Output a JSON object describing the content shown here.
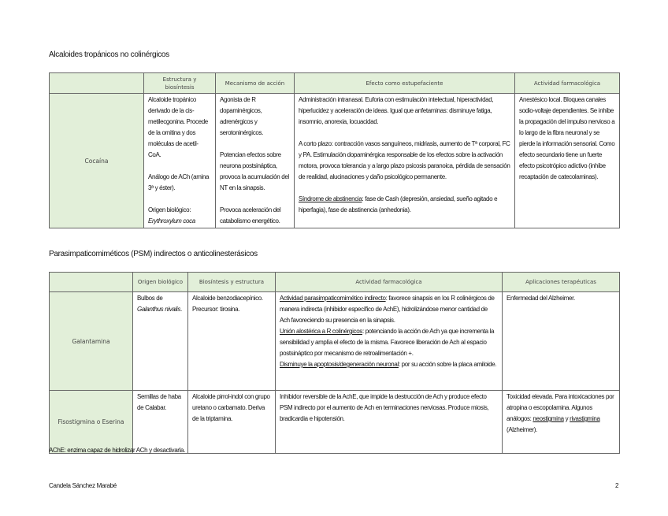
{
  "section1": {
    "title": "Alcaloides tropánicos no colinérgicos",
    "headers": [
      "",
      "Estructura y biosíntesis",
      "Mecanismo de acción",
      "Efecto como estupefaciente",
      "Actividad farmacológica"
    ],
    "row": {
      "name": "Cocaína",
      "estructura": [
        "Alcaloide tropánico derivado de la cis-metilecgonina. Procede de la ornitina y dos moléculas de acetil-CoA.",
        "Análogo de ACh (amina 3ª y éster).",
        "Origen biológico:"
      ],
      "estructura_italic": "Erythroxylum coca",
      "mecanismo": [
        "Agonista de R dopaminérgicos, adrenérgicos y serotoninérgicos.",
        "Potencian efectos sobre neurona postsináptica, provoca la acumulación del NT en la sinapsis.",
        "Provoca aceleración del catabolismo energético."
      ],
      "efecto": [
        "Administración intranasal. Euforia con estimulación intelectual, hiperactividad, hiperlucidez y aceleración de ideas. Igual que anfetaminas: disminuye fatiga, insomnio, anorexia, locuacidad.",
        "A corto plazo: contracción vasos sanguíneos, midriasis, aumento de Tª corporal, FC y PA. Estimulación dopaminérgica responsable de los efectos sobre la activación motora, provoca tolerancia y a largo plazo psicosis paranoica, pérdida de sensación de realidad, alucinaciones y daño psicológico permanente."
      ],
      "efecto_abst_label": "Síndrome de abstinencia",
      "efecto_abst_text": ": fase de Cash (depresión, ansiedad, sueño agitado e hiperfagia), fase de abstinencia (anhedonia).",
      "actividad": "Anestésico local. Bloquea canales sodio-voltaje dependientes. Se inhibe la propagación del impulso nervioso a lo largo de la fibra neuronal y se pierde la información sensorial. Como efecto secundario tiene un fuerte efecto psicotrópico adictivo (inhibe recaptación de catecolaminas)."
    }
  },
  "section2": {
    "title": "Parasimpaticomiméticos (PSM) indirectos o anticolinesterásicos",
    "headers": [
      "",
      "Origen biológico",
      "Biosíntesis y estructura",
      "Actividad farmacológica",
      "Aplicaciones terapéuticas"
    ],
    "rows": [
      {
        "name": "Galantamina",
        "origen": "Bulbos de",
        "origen_italic": "Galanthus nivalis",
        "origen_end": ".",
        "biosintesis": "Alcaloide benzodiacepínico. Precursor: tirosina.",
        "act": [
          {
            "label": "Actividad parasimpaticomimético indirecto",
            "text": ": favorece sinapsis en los R colinérgicos de manera indirecta (inhibidor específico de AchE), hidrolizándose menor cantidad de Ach favoreciendo su presencia en la sinapsis."
          },
          {
            "label": "Unión alostérica a R colinérgicos",
            "text": ": potenciando la acción de Ach ya que incrementa la sensibilidad y amplía el efecto de la misma. Favorece liberación de Ach al espacio postsináptico por mecanismo de retroalimentación +."
          },
          {
            "label": "Disminuye la apoptosis/degeneración neuronal",
            "text": ": por su acción sobre la placa amiloide."
          }
        ],
        "aplicaciones": "Enfermedad del Alzheimer."
      },
      {
        "name": "Fisostigmina o Eserina",
        "origen": "Semillas de haba de Calabar.",
        "biosintesis": "Alcaloide pirrol-indol con grupo uretano o carbamato. Deriva de la triptamina.",
        "act_text": "Inhibidor reversible de la AchE, que impide la destrucción de Ach y produce efecto PSM indirecto por el aumento de Ach en terminaciones nerviosas. Produce miosis, bradicardia e hipotensión.",
        "aplicaciones": "Toxicidad elevada. Para intoxicaciones por atropina o escopolamina. Algunos análogos:",
        "analog1": "neostigmina",
        "analog_and": " y ",
        "analog2": "rivastigmina",
        "aplicaciones_end": "(Alzheimer)."
      }
    ]
  },
  "note": "AChE: enzima capaz de hidrolizar ACh y desactivarla.",
  "footer": {
    "author": "Candela Sánchez Marabé",
    "page": "2"
  }
}
